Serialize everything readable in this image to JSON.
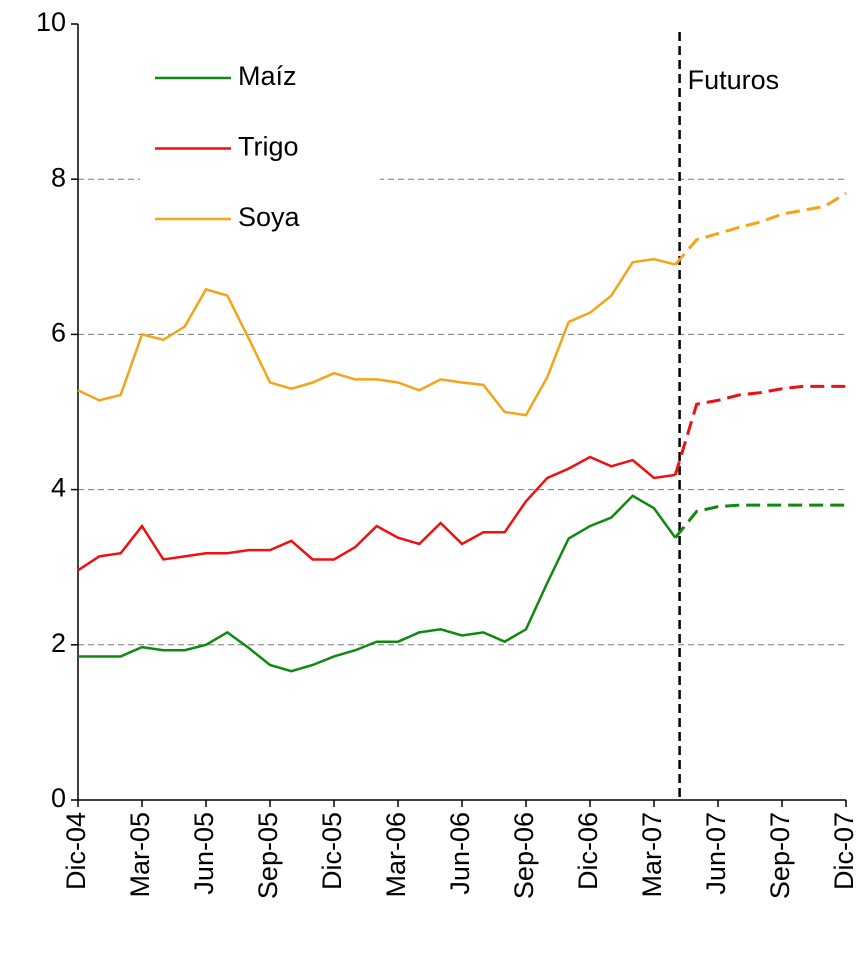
{
  "chart_data": {
    "type": "line",
    "categories": [
      "Dic-04",
      null,
      null,
      "Mar-05",
      null,
      null,
      "Jun-05",
      null,
      null,
      "Sep-05",
      null,
      null,
      "Dic-05",
      null,
      null,
      "Mar-06",
      null,
      null,
      "Jun-06",
      null,
      null,
      "Sep-06",
      null,
      null,
      "Dic-06",
      null,
      null,
      "Mar-07",
      null,
      null,
      "Jun-07",
      null,
      null,
      "Sep-07",
      null,
      null,
      "Dic-07"
    ],
    "series": [
      {
        "name": "Maíz",
        "color": "#118811",
        "values": [
          1.85,
          1.85,
          1.85,
          1.97,
          1.93,
          1.93,
          2.0,
          2.16,
          1.96,
          1.74,
          1.66,
          1.74,
          1.85,
          1.93,
          2.04,
          2.04,
          2.16,
          2.2,
          2.12,
          2.16,
          2.04,
          2.2,
          2.8,
          3.37,
          3.53,
          3.64,
          3.92,
          3.76,
          3.38,
          3.72,
          3.78,
          3.8,
          3.8,
          3.8,
          3.8,
          3.8,
          3.8
        ]
      },
      {
        "name": "Trigo",
        "color": "#ee1111",
        "values": [
          2.96,
          3.14,
          3.18,
          3.53,
          3.1,
          3.14,
          3.18,
          3.18,
          3.22,
          3.22,
          3.34,
          3.1,
          3.1,
          3.26,
          3.53,
          3.38,
          3.3,
          3.57,
          3.3,
          3.45,
          3.45,
          3.85,
          4.15,
          4.27,
          4.42,
          4.3,
          4.38,
          4.15,
          4.19,
          5.1,
          5.15,
          5.22,
          5.25,
          5.3,
          5.33,
          5.33,
          5.33
        ]
      },
      {
        "name": "Soya",
        "color": "#f5a31a",
        "values": [
          5.28,
          5.15,
          5.22,
          6.0,
          5.93,
          6.1,
          6.58,
          6.5,
          5.95,
          5.38,
          5.3,
          5.38,
          5.5,
          5.42,
          5.42,
          5.38,
          5.28,
          5.42,
          5.38,
          5.35,
          5.0,
          4.96,
          5.45,
          6.16,
          6.28,
          6.5,
          6.93,
          6.97,
          6.9,
          7.22,
          7.3,
          7.38,
          7.45,
          7.55,
          7.6,
          7.65,
          7.82
        ]
      }
    ],
    "annotation": {
      "text": "Futuros",
      "x": 28.2
    },
    "ylim": [
      0,
      10
    ],
    "yticks": [
      0,
      2,
      4,
      6,
      8,
      10
    ],
    "grid": true,
    "legend": "upper-left"
  }
}
